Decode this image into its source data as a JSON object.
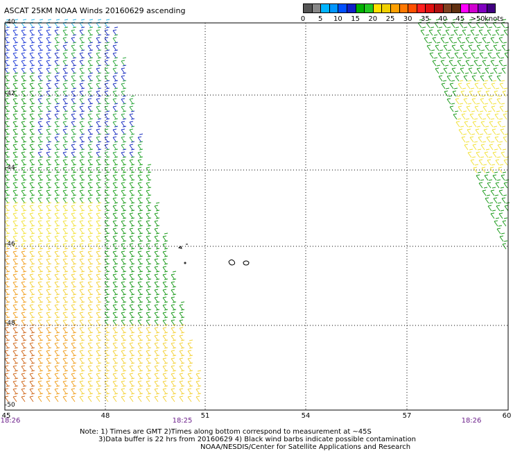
{
  "title": "ASCAT 25KM NOAA Winds 20160629 ascending",
  "colorbar": {
    "unit": "knots",
    "ticks": [
      "0",
      "5",
      "10",
      "15",
      "20",
      "25",
      "30",
      "35",
      "40",
      "45",
      ">50"
    ],
    "colors": [
      "#555555",
      "#888888",
      "#00b4ff",
      "#0096ff",
      "#0050ff",
      "#1020c8",
      "#00b000",
      "#22c822",
      "#ffe000",
      "#f0d000",
      "#ffa000",
      "#ff7800",
      "#ff5000",
      "#ff2020",
      "#e01010",
      "#b01010",
      "#804020",
      "#603010",
      "#ff00ff",
      "#d000d0",
      "#8000c0",
      "#400080"
    ]
  },
  "axes": {
    "lon_ticks": [
      "45",
      "48",
      "51",
      "54",
      "57",
      "60"
    ],
    "lat_ticks": [
      "-40",
      "-42",
      "-44",
      "-46",
      "-48",
      "-50"
    ]
  },
  "times": [
    "18:26",
    "18:25",
    "18:26"
  ],
  "notes": {
    "line1": "Note: 1) Times are GMT 2)Times along bottom correspond to measurement at ~45S",
    "line2": "3)Data buffer is 22 hrs from 20160629 4) Black wind barbs indicate possible contamination",
    "line3": "NOAA/NESDIS/Center for Satellite Applications and Research"
  }
}
